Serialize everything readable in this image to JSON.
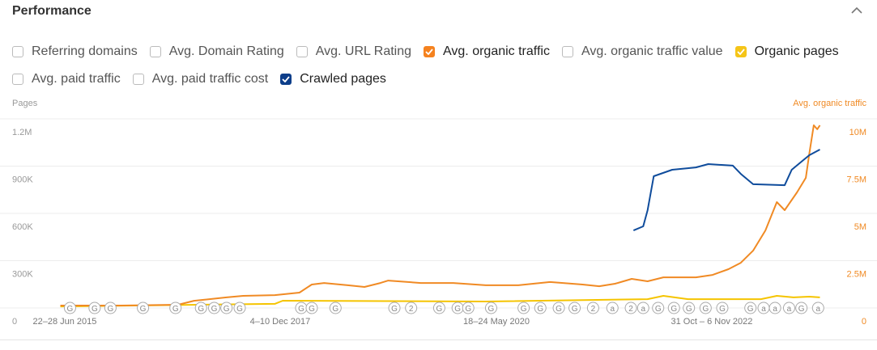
{
  "header": {
    "title": "Performance"
  },
  "filters": [
    [
      {
        "label": "Referring domains",
        "checked": false
      },
      {
        "label": "Avg. Domain Rating",
        "checked": false
      },
      {
        "label": "Avg. URL Rating",
        "checked": false
      },
      {
        "label": "Avg. organic traffic",
        "checked": true,
        "color": "#f5821f"
      },
      {
        "label": "Avg. organic traffic value",
        "checked": false
      },
      {
        "label": "Organic pages",
        "checked": true,
        "color": "#f5c518"
      }
    ],
    [
      {
        "label": "Avg. paid traffic",
        "checked": false
      },
      {
        "label": "Avg. paid traffic cost",
        "checked": false
      },
      {
        "label": "Crawled pages",
        "checked": true,
        "color": "#0d3e8a"
      }
    ]
  ],
  "chart_data": {
    "type": "line",
    "y_label": "Pages",
    "y2_label": "Avg. organic traffic",
    "xlim": [
      2015.02,
      2024.6
    ],
    "xticks": [
      {
        "value": 2015.48,
        "label": "22–28 Jun 2015"
      },
      {
        "value": 2017.93,
        "label": "4–10 Dec 2017"
      },
      {
        "value": 2020.39,
        "label": "18–24 May 2020"
      },
      {
        "value": 2022.84,
        "label": "31 Oct – 6 Nov 2022"
      }
    ],
    "ylim": [
      0,
      1200000
    ],
    "yticks": [
      0,
      {
        "value": 300000,
        "label": "300K"
      },
      {
        "value": 600000,
        "label": "600K"
      },
      {
        "value": 900000,
        "label": "900K"
      },
      {
        "value": 1200000,
        "label": "1.2M"
      }
    ],
    "y2lim": [
      0,
      10000000
    ],
    "y2ticks": [
      0,
      {
        "value": 2500000,
        "label": "2.5M"
      },
      {
        "value": 5000000,
        "label": "5M"
      },
      {
        "value": 7500000,
        "label": "7.5M"
      },
      {
        "value": 10000000,
        "label": "10M"
      }
    ],
    "grid": true,
    "series": [
      {
        "name": "Organic pages",
        "color": "#f5c400",
        "x": [
          2015.43,
          2017.87,
          2017.96,
          2020.27,
          2022.11,
          2022.29,
          2022.57,
          2023.4,
          2023.58,
          2023.77,
          2023.95,
          2024.07
        ],
        "values": [
          10000,
          26000,
          46000,
          41000,
          56000,
          77000,
          56000,
          56000,
          77000,
          67000,
          72000,
          67000
        ]
      },
      {
        "name": "Avg. organic traffic",
        "color": "#f08a24",
        "axis": "y2",
        "x": [
          2015.43,
          2016.12,
          2016.77,
          2016.95,
          2017.32,
          2017.51,
          2017.87,
          2018.15,
          2018.29,
          2018.43,
          2018.7,
          2018.89,
          2019.07,
          2019.16,
          2019.53,
          2019.9,
          2020.27,
          2020.64,
          2021.0,
          2021.37,
          2021.56,
          2021.74,
          2021.93,
          2022.11,
          2022.29,
          2022.66,
          2022.85,
          2023.03,
          2023.17,
          2023.31,
          2023.45,
          2023.58,
          2023.67,
          2023.81,
          2023.91,
          2023.95,
          2024.0,
          2024.04,
          2024.07
        ],
        "values": [
          130000,
          130000,
          170000,
          380000,
          560000,
          640000,
          680000,
          810000,
          1240000,
          1320000,
          1200000,
          1110000,
          1320000,
          1450000,
          1320000,
          1320000,
          1200000,
          1200000,
          1370000,
          1240000,
          1150000,
          1280000,
          1540000,
          1410000,
          1620000,
          1620000,
          1750000,
          2050000,
          2390000,
          3030000,
          4100000,
          5600000,
          5170000,
          6110000,
          6880000,
          8160000,
          9660000,
          9450000,
          9660000
        ]
      },
      {
        "name": "Crawled pages",
        "color": "#0f4c9c",
        "x": [
          2021.95,
          2022.06,
          2022.11,
          2022.18,
          2022.39,
          2022.66,
          2022.8,
          2023.08,
          2023.17,
          2023.31,
          2023.67,
          2023.75,
          2023.86,
          2023.95,
          2024.07
        ],
        "values": [
          492000,
          518000,
          620000,
          836000,
          877000,
          892000,
          913000,
          903000,
          851000,
          785000,
          779000,
          877000,
          928000,
          969000,
          1005000
        ]
      }
    ],
    "markers": [
      {
        "x": 2015.54,
        "label": "G"
      },
      {
        "x": 2015.82,
        "label": "G"
      },
      {
        "x": 2016.0,
        "label": "G"
      },
      {
        "x": 2016.37,
        "label": "G"
      },
      {
        "x": 2016.74,
        "label": "G"
      },
      {
        "x": 2017.03,
        "label": "G"
      },
      {
        "x": 2017.18,
        "label": "G"
      },
      {
        "x": 2017.32,
        "label": "G"
      },
      {
        "x": 2017.47,
        "label": "G"
      },
      {
        "x": 2018.17,
        "label": "G"
      },
      {
        "x": 2018.29,
        "label": "G"
      },
      {
        "x": 2018.56,
        "label": "G"
      },
      {
        "x": 2019.23,
        "label": "G"
      },
      {
        "x": 2019.42,
        "label": "2"
      },
      {
        "x": 2019.74,
        "label": "G"
      },
      {
        "x": 2019.95,
        "label": "G"
      },
      {
        "x": 2020.07,
        "label": "G"
      },
      {
        "x": 2020.33,
        "label": "G"
      },
      {
        "x": 2020.7,
        "label": "G"
      },
      {
        "x": 2020.89,
        "label": "G"
      },
      {
        "x": 2021.1,
        "label": "G"
      },
      {
        "x": 2021.28,
        "label": "G"
      },
      {
        "x": 2021.49,
        "label": "2"
      },
      {
        "x": 2021.71,
        "label": "a"
      },
      {
        "x": 2021.92,
        "label": "2"
      },
      {
        "x": 2022.06,
        "label": "a"
      },
      {
        "x": 2022.23,
        "label": "G"
      },
      {
        "x": 2022.41,
        "label": "G"
      },
      {
        "x": 2022.58,
        "label": "G"
      },
      {
        "x": 2022.77,
        "label": "G"
      },
      {
        "x": 2022.96,
        "label": "G"
      },
      {
        "x": 2023.28,
        "label": "G"
      },
      {
        "x": 2023.43,
        "label": "a"
      },
      {
        "x": 2023.56,
        "label": "a"
      },
      {
        "x": 2023.72,
        "label": "a"
      },
      {
        "x": 2023.86,
        "label": "G"
      },
      {
        "x": 2024.05,
        "label": "a"
      }
    ]
  }
}
